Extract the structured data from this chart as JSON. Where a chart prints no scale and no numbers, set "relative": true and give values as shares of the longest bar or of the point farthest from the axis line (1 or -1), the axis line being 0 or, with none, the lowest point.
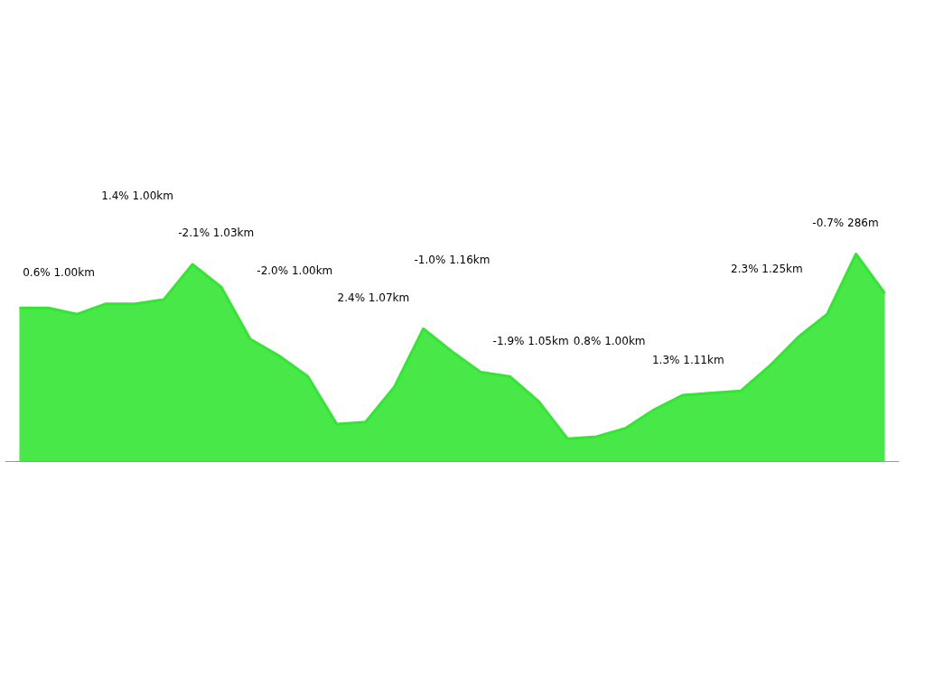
{
  "chart_data": {
    "type": "area",
    "relative": true,
    "color": "#33e633",
    "categories": [
      null,
      null,
      null,
      null,
      null,
      null,
      null,
      null,
      null,
      null,
      null,
      null,
      null,
      null,
      null,
      null,
      null,
      null,
      null,
      null,
      null,
      null,
      null,
      null,
      null,
      null,
      null,
      null,
      null,
      null,
      null
    ],
    "values": [
      0.74,
      0.74,
      0.71,
      0.76,
      0.76,
      0.78,
      0.95,
      0.84,
      0.59,
      0.51,
      0.41,
      0.18,
      0.19,
      0.36,
      0.64,
      0.53,
      0.43,
      0.41,
      0.29,
      0.11,
      0.12,
      0.16,
      0.25,
      0.32,
      0.33,
      0.34,
      0.46,
      0.6,
      0.71,
      1.0,
      0.81
    ],
    "annotations": [
      "0.6% 1.00km",
      "1.4% 1.00km",
      "-2.1% 1.03km",
      "-2.0% 1.00km",
      "2.4% 1.07km",
      "-1.0% 1.16km",
      "-1.9% 1.05km",
      "0.8% 1.00km",
      "1.3% 1.11km",
      "2.3% 1.25km",
      "-0.7% 286m"
    ]
  }
}
